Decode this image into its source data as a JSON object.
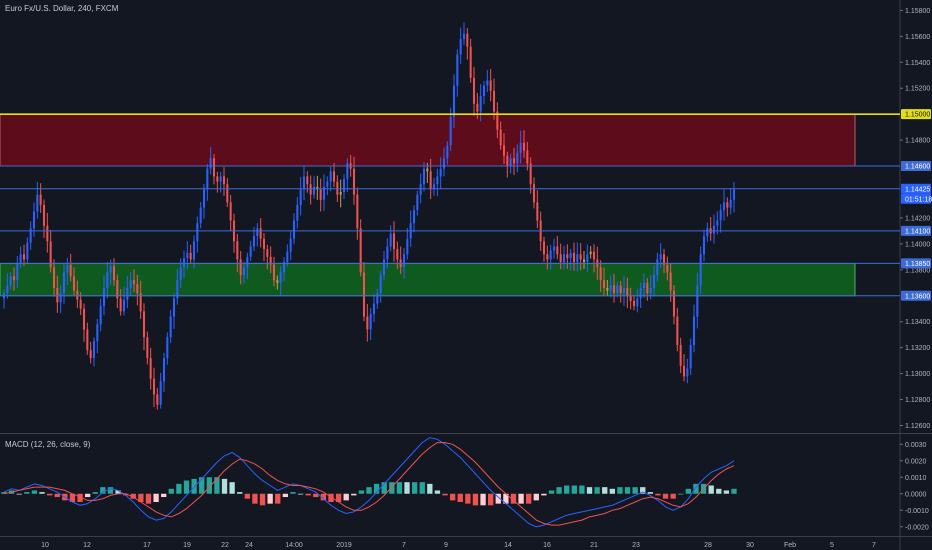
{
  "header": {
    "title": "Euro Fx/U.S. Dollar, 240, FXCM"
  },
  "macd_panel": {
    "title": "MACD (12, 26, close, 9)"
  },
  "colors": {
    "background": "#131722",
    "up_candle": "#2962ff",
    "down_candle": "#ef5350",
    "neutral_candle": "#c99a4a",
    "resistance_zone": "#5c0c1b",
    "support_zone": "#0f5a1f",
    "yellow_line": "#e4de16",
    "level_line": "#3f6bd6",
    "macd_line": "#2962ff",
    "signal_line": "#ef5350",
    "hist_up": "#26a69a",
    "hist_down": "#ef5350"
  },
  "chart_data": [
    {
      "type": "candlestick",
      "title": "Euro Fx/U.S. Dollar, 240, FXCM",
      "ylim": [
        1.1255,
        1.1588
      ],
      "price_axis_ticks": [
        "1.15800",
        "1.15600",
        "1.15400",
        "1.15200",
        "1.14800",
        "1.14200",
        "1.14000",
        "1.13800",
        "1.13400",
        "1.13200",
        "1.13000",
        "1.12800",
        "1.12600"
      ],
      "x_axis_ticks": [
        "10",
        "12",
        "17",
        "19",
        "22",
        "24",
        "14:00",
        "2019",
        "7",
        "9",
        "14",
        "16",
        "21",
        "23",
        "28",
        "30",
        "Feb",
        "5",
        "7"
      ],
      "horizontal_levels": [
        {
          "price": 1.15,
          "label": "1.15000",
          "style": "yellow"
        },
        {
          "price": 1.146,
          "label": "1.14600",
          "style": "blue"
        },
        {
          "price": 1.14425,
          "label": "1.14425",
          "style": "current"
        },
        {
          "price": 1.141,
          "label": "1.14100",
          "style": "blue"
        },
        {
          "price": 1.1385,
          "label": "1.13850",
          "style": "blue"
        },
        {
          "price": 1.136,
          "label": "1.13600",
          "style": "blue"
        }
      ],
      "current_price": {
        "price": "1.14425",
        "countdown": "01:51:18"
      },
      "zones": [
        {
          "name": "resistance",
          "from": 1.146,
          "to": 1.15
        },
        {
          "name": "support",
          "from": 1.136,
          "to": 1.1385
        }
      ],
      "close_path": [
        1.1362,
        1.1368,
        1.1375,
        1.1372,
        1.1385,
        1.1392,
        1.1388,
        1.1401,
        1.1412,
        1.1425,
        1.1438,
        1.143,
        1.1414,
        1.1402,
        1.1382,
        1.1366,
        1.1355,
        1.1362,
        1.1378,
        1.1384,
        1.1375,
        1.1364,
        1.1357,
        1.135,
        1.1334,
        1.1318,
        1.1312,
        1.1325,
        1.1338,
        1.1352,
        1.1366,
        1.1378,
        1.1383,
        1.1372,
        1.1358,
        1.1348,
        1.1357,
        1.1366,
        1.1372,
        1.1369,
        1.1362,
        1.1348,
        1.1328,
        1.1312,
        1.1296,
        1.1284,
        1.1276,
        1.1294,
        1.1312,
        1.1328,
        1.1344,
        1.1358,
        1.1372,
        1.1382,
        1.1389,
        1.1393,
        1.1388,
        1.1402,
        1.1416,
        1.1428,
        1.1442,
        1.1458,
        1.1466,
        1.1452,
        1.1448,
        1.1452,
        1.1446,
        1.1432,
        1.1418,
        1.1402,
        1.1388,
        1.1376,
        1.1382,
        1.139,
        1.1398,
        1.1406,
        1.1412,
        1.1404,
        1.1396,
        1.139,
        1.1384,
        1.1372,
        1.137,
        1.1378,
        1.1386,
        1.1394,
        1.1404,
        1.1418,
        1.143,
        1.1442,
        1.1452,
        1.1446,
        1.1438,
        1.1444,
        1.1442,
        1.1434,
        1.1444,
        1.1448,
        1.1456,
        1.1448,
        1.1438,
        1.144,
        1.145,
        1.1462,
        1.1458,
        1.1438,
        1.1412,
        1.1378,
        1.1344,
        1.1334,
        1.1346,
        1.1354,
        1.1362,
        1.1376,
        1.1388,
        1.1398,
        1.1408,
        1.1396,
        1.1388,
        1.1382,
        1.1392,
        1.1404,
        1.1416,
        1.1426,
        1.1438,
        1.1446,
        1.1458,
        1.1456,
        1.1442,
        1.1446,
        1.1452,
        1.1458,
        1.1466,
        1.1476,
        1.1498,
        1.1522,
        1.1546,
        1.1558,
        1.1562,
        1.1552,
        1.1528,
        1.1508,
        1.1502,
        1.1514,
        1.1522,
        1.1526,
        1.1518,
        1.1502,
        1.1488,
        1.1476,
        1.1468,
        1.146,
        1.1466,
        1.1462,
        1.147,
        1.1478,
        1.1472,
        1.1462,
        1.1446,
        1.1432,
        1.1418,
        1.1402,
        1.1392,
        1.1388,
        1.1395,
        1.1398,
        1.1392,
        1.1386,
        1.1392,
        1.1389,
        1.1393,
        1.1386,
        1.1392,
        1.1388,
        1.1386,
        1.1392,
        1.1394,
        1.1388,
        1.1382,
        1.1372,
        1.1366,
        1.1364,
        1.1368,
        1.1362,
        1.1368,
        1.1362,
        1.1366,
        1.136,
        1.1356,
        1.1352,
        1.1358,
        1.1366,
        1.137,
        1.1362,
        1.1366,
        1.1376,
        1.1388,
        1.1392,
        1.1384,
        1.1378,
        1.1364,
        1.1344,
        1.1322,
        1.1306,
        1.1298,
        1.1304,
        1.1322,
        1.1344,
        1.1368,
        1.1392,
        1.1406,
        1.1412,
        1.1408,
        1.1414,
        1.1418,
        1.1426,
        1.1432,
        1.1428,
        1.1434,
        1.1442
      ]
    },
    {
      "type": "line",
      "title": "MACD (12, 26, close, 9)",
      "ylim": [
        -0.0025,
        0.0035
      ],
      "y_ticks": [
        "0.0030",
        "0.0020",
        "0.0010",
        "0.0000",
        "-0.0010",
        "-0.0020"
      ],
      "series": [
        {
          "name": "MACD",
          "values": [
            0.0001,
            0.0003,
            0.0002,
            0.0004,
            0.0006,
            0.0005,
            0.0003,
            0.0001,
            -0.0002,
            -0.0005,
            -0.0007,
            -0.0006,
            -0.0003,
            0.0001,
            0.0003,
            0.0002,
            -0.0001,
            -0.0005,
            -0.001,
            -0.0014,
            -0.0016,
            -0.0015,
            -0.0011,
            -0.0006,
            -0.0001,
            0.0004,
            0.0009,
            0.0014,
            0.0019,
            0.0023,
            0.0025,
            0.0022,
            0.0017,
            0.0012,
            0.0008,
            0.0005,
            0.0002,
            0.0004,
            0.0006,
            0.0005,
            0.0003,
            0.0001,
            -0.0003,
            -0.0007,
            -0.001,
            -0.0012,
            -0.0011,
            -0.0008,
            -0.0004,
            0.0001,
            0.0006,
            0.0011,
            0.0016,
            0.0021,
            0.0026,
            0.0031,
            0.0034,
            0.0033,
            0.003,
            0.0026,
            0.0022,
            0.0017,
            0.0012,
            0.0007,
            0.0002,
            -0.0002,
            -0.0006,
            -0.001,
            -0.0014,
            -0.0018,
            -0.002,
            -0.0019,
            -0.0017,
            -0.0015,
            -0.0013,
            -0.0012,
            -0.0011,
            -0.001,
            -0.0009,
            -0.0008,
            -0.0007,
            -0.0005,
            -0.0003,
            -0.0001,
            0.0001,
            -0.0001,
            -0.0004,
            -0.0008,
            -0.001,
            -0.0008,
            -0.0003,
            0.0004,
            0.0009,
            0.0013,
            0.0015,
            0.0017,
            0.002
          ]
        },
        {
          "name": "Signal",
          "values": [
            0.0,
            0.0001,
            0.0002,
            0.0003,
            0.0004,
            0.0004,
            0.0004,
            0.0003,
            0.0002,
            0.0,
            -0.0002,
            -0.0004,
            -0.0004,
            -0.0003,
            -0.0001,
            0.0,
            0.0,
            -0.0002,
            -0.0005,
            -0.0008,
            -0.0011,
            -0.0013,
            -0.0014,
            -0.0012,
            -0.0009,
            -0.0005,
            -0.0001,
            0.0004,
            0.0009,
            0.0014,
            0.0018,
            0.0021,
            0.002,
            0.0018,
            0.0015,
            0.0011,
            0.0008,
            0.0006,
            0.0005,
            0.0005,
            0.0004,
            0.0003,
            0.0001,
            -0.0002,
            -0.0005,
            -0.0008,
            -0.001,
            -0.001,
            -0.0008,
            -0.0005,
            -0.0001,
            0.0004,
            0.0009,
            0.0014,
            0.0019,
            0.0024,
            0.0028,
            0.0031,
            0.0031,
            0.003,
            0.0027,
            0.0023,
            0.0019,
            0.0014,
            0.0009,
            0.0004,
            0.0,
            -0.0004,
            -0.0008,
            -0.0012,
            -0.0016,
            -0.0018,
            -0.0019,
            -0.0019,
            -0.0018,
            -0.0017,
            -0.0016,
            -0.0014,
            -0.0013,
            -0.0012,
            -0.001,
            -0.0009,
            -0.0007,
            -0.0005,
            -0.0003,
            -0.0002,
            -0.0003,
            -0.0005,
            -0.0007,
            -0.0008,
            -0.0006,
            -0.0002,
            0.0003,
            0.0008,
            0.0012,
            0.0015,
            0.0017
          ]
        }
      ]
    }
  ]
}
